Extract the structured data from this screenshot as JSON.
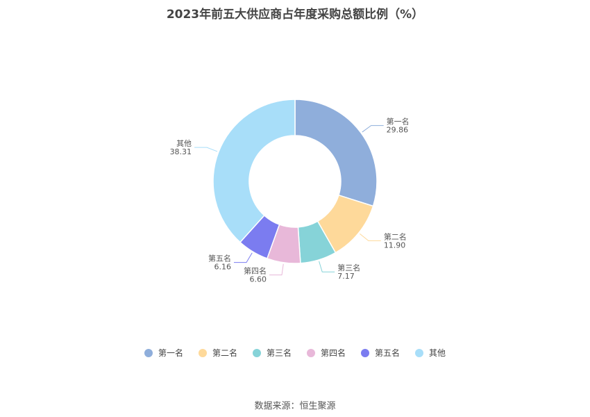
{
  "chart_data": {
    "type": "pie",
    "title": "2023年前五大供应商占年度采购总额比例（%）",
    "categories": [
      "第一名",
      "第二名",
      "第三名",
      "第四名",
      "第五名",
      "其他"
    ],
    "values": [
      29.86,
      11.9,
      7.17,
      6.6,
      6.16,
      38.31
    ],
    "value_labels": [
      "29.86",
      "11.90",
      "7.17",
      "6.60",
      "6.16",
      "38.31"
    ],
    "colors": [
      "#8faedb",
      "#fed99a",
      "#86d3d8",
      "#e8b8d9",
      "#7b7cf0",
      "#a8def9"
    ],
    "donut": true,
    "legend_position": "bottom"
  },
  "source": "数据来源：恒生聚源"
}
